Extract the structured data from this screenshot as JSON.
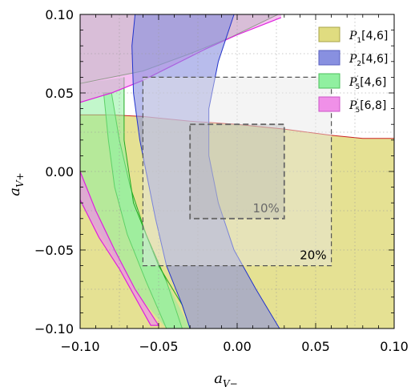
{
  "chart_data": {
    "type": "area",
    "title": "",
    "xlabel_main": "a",
    "xlabel_sub": "V−",
    "ylabel_main": "a",
    "ylabel_sub": "V+",
    "xlim": [
      -0.1,
      0.1
    ],
    "ylim": [
      -0.1,
      0.1
    ],
    "grid": true,
    "legend_position": "top-right",
    "x_ticks": [
      -0.1,
      -0.05,
      0.0,
      0.05,
      0.1
    ],
    "x_tick_labels": [
      "−0.10",
      "−0.05",
      "0.00",
      "0.05",
      "0.10"
    ],
    "y_ticks": [
      -0.1,
      -0.05,
      0.0,
      0.05,
      0.1
    ],
    "y_tick_labels": [
      "−0.10",
      "−0.05",
      "0.00",
      "0.05",
      "0.10"
    ],
    "colors": {
      "P1": "#e0dc80",
      "P1_edge": "#cc2222",
      "P2": "#8890e0",
      "P2_edge": "#2233cc",
      "P5p46": "#90f0a0",
      "P5p46_edge": "#22aa22",
      "P5p68": "#f090e8",
      "P5p68_edge": "#dd22dd",
      "box_fill": "#e6e6e6"
    },
    "series": [
      {
        "name_main": "P",
        "name_sub": "1",
        "name_bin": "[4,6]",
        "boundary": [
          [
            -0.1,
            0.036
          ],
          [
            -0.08,
            0.036
          ],
          [
            -0.06,
            0.035
          ],
          [
            -0.03,
            0.032
          ],
          [
            0.0,
            0.03
          ],
          [
            0.03,
            0.027
          ],
          [
            0.06,
            0.023
          ],
          [
            0.08,
            0.021
          ],
          [
            0.1,
            0.021
          ]
        ]
      },
      {
        "name_main": "P",
        "name_sub": "2",
        "name_bin": "[4,6]",
        "left_edge": [
          [
            -0.065,
            0.1
          ],
          [
            -0.067,
            0.08
          ],
          [
            -0.066,
            0.05
          ],
          [
            -0.062,
            0.02
          ],
          [
            -0.058,
            0.0
          ],
          [
            -0.052,
            -0.03
          ],
          [
            -0.045,
            -0.06
          ],
          [
            -0.035,
            -0.085
          ],
          [
            -0.03,
            -0.1
          ]
        ],
        "right_edge": [
          [
            -0.002,
            0.1
          ],
          [
            -0.012,
            0.07
          ],
          [
            -0.018,
            0.04
          ],
          [
            -0.018,
            0.01
          ],
          [
            -0.012,
            -0.02
          ],
          [
            -0.002,
            -0.05
          ],
          [
            0.012,
            -0.075
          ],
          [
            0.027,
            -0.1
          ]
        ]
      },
      {
        "name_main": "P",
        "name_sub": "5",
        "name_prime": "′",
        "name_bin": "[4,6]",
        "left_edge": [
          [
            -0.088,
            0.1
          ],
          [
            -0.097,
            0.08
          ],
          [
            -0.1,
            0.07
          ]
        ],
        "right_edge": [
          [
            0.026,
            0.1
          ],
          [
            -0.005,
            0.085
          ],
          [
            -0.03,
            0.075
          ],
          [
            -0.06,
            0.064
          ],
          [
            -0.1,
            0.056
          ]
        ],
        "band_left": [
          [
            -0.085,
            0.05
          ],
          [
            -0.082,
            0.02
          ],
          [
            -0.078,
            -0.01
          ],
          [
            -0.07,
            -0.04
          ],
          [
            -0.058,
            -0.07
          ],
          [
            -0.045,
            -0.1
          ]
        ],
        "band_right": [
          [
            -0.08,
            0.05
          ],
          [
            -0.075,
            0.02
          ],
          [
            -0.068,
            -0.01
          ],
          [
            -0.058,
            -0.04
          ],
          [
            -0.045,
            -0.07
          ],
          [
            -0.035,
            -0.1
          ]
        ]
      },
      {
        "name_main": "P",
        "name_sub": "5",
        "name_prime": "′",
        "name_bin": "[6,8]",
        "region_top": [
          [
            -0.1,
            0.1
          ],
          [
            0.0,
            0.1
          ],
          [
            0.028,
            0.1
          ]
        ],
        "region_bottom": [
          [
            -0.1,
            0.044
          ],
          [
            -0.08,
            0.05
          ],
          [
            -0.06,
            0.058
          ],
          [
            -0.04,
            0.068
          ],
          [
            -0.02,
            0.078
          ],
          [
            0.0,
            0.087
          ],
          [
            0.028,
            0.098
          ]
        ],
        "band_left": [
          [
            -0.1,
            -0.018
          ],
          [
            -0.088,
            -0.042
          ],
          [
            -0.075,
            -0.062
          ],
          [
            -0.065,
            -0.08
          ],
          [
            -0.055,
            -0.098
          ]
        ],
        "band_right": [
          [
            -0.1,
            -0.0
          ],
          [
            -0.09,
            -0.025
          ],
          [
            -0.078,
            -0.05
          ],
          [
            -0.065,
            -0.075
          ],
          [
            -0.05,
            -0.098
          ]
        ]
      }
    ],
    "annotations": [
      {
        "text": "10%",
        "box": [
          -0.03,
          0.03,
          -0.03,
          0.03
        ]
      },
      {
        "text": "20%",
        "box": [
          -0.06,
          0.06,
          -0.06,
          0.06
        ]
      }
    ]
  }
}
